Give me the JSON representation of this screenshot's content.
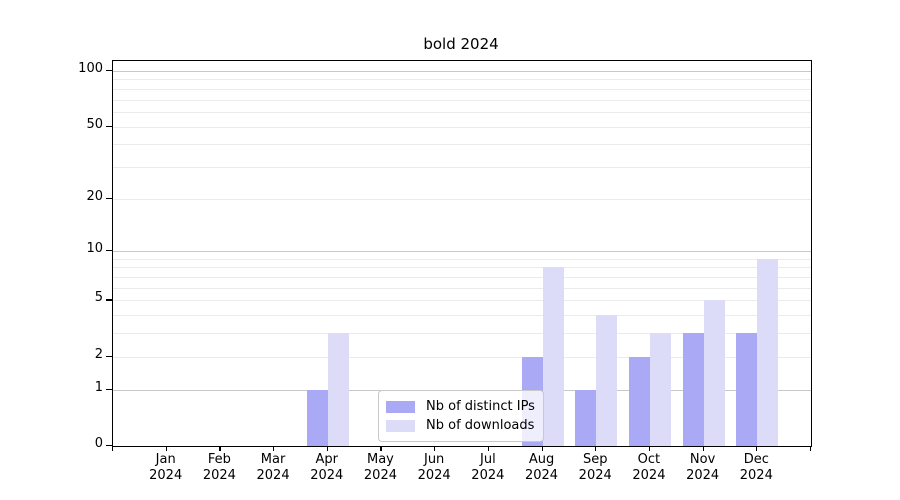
{
  "chart_data": {
    "type": "bar",
    "title": "bold 2024",
    "year_label": "2024",
    "categories": [
      "Jan",
      "Feb",
      "Mar",
      "Apr",
      "May",
      "Jun",
      "Jul",
      "Aug",
      "Sep",
      "Oct",
      "Nov",
      "Dec"
    ],
    "series": [
      {
        "name": "Nb of distinct IPs",
        "color": "#a9a9f6",
        "values": [
          0,
          0,
          0,
          1,
          0,
          0,
          0,
          2,
          1,
          2,
          3,
          3
        ]
      },
      {
        "name": "Nb of downloads",
        "color": "#dcdcf8",
        "values": [
          0,
          0,
          0,
          3,
          0,
          0,
          0,
          8,
          4,
          3,
          5,
          9
        ]
      }
    ],
    "yscale": "log1p",
    "ylim": [
      0,
      113
    ],
    "ytick_values": [
      0,
      1,
      2,
      5,
      10,
      20,
      50,
      100
    ],
    "ytick_labels": [
      "0",
      "1",
      "2",
      "5",
      "10",
      "20",
      "50",
      "100"
    ],
    "grid_values_major": [
      1,
      10,
      100
    ],
    "grid_values_minor": [
      2,
      3,
      4,
      5,
      6,
      7,
      8,
      9,
      20,
      30,
      40,
      50,
      60,
      70,
      80,
      90
    ],
    "legend_position": "lower center",
    "grid": true
  },
  "colors": {
    "background": "#ffffff",
    "spine": "#000000",
    "text": "#000000",
    "grid_major": "#c8c8c8",
    "grid_minor": "#ebebeb",
    "legend_border": "#c9c9c9"
  }
}
